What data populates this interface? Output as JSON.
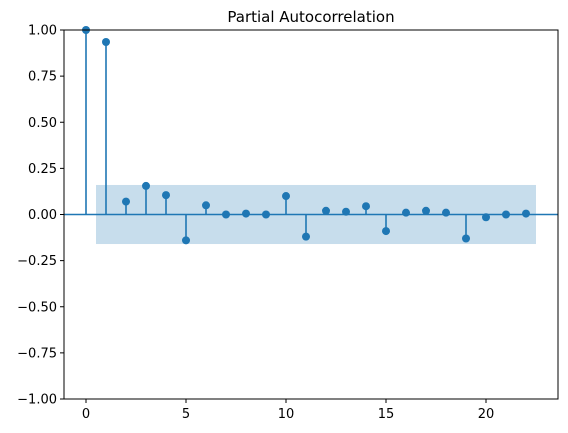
{
  "chart_data": {
    "type": "stem",
    "title": "Partial Autocorrelation",
    "xlabel": "",
    "ylabel": "",
    "xlim": [
      -1.1,
      23.6
    ],
    "ylim": [
      -1.0,
      1.0
    ],
    "xticks": [
      0,
      5,
      10,
      15,
      20
    ],
    "yticks": [
      -1.0,
      -0.75,
      -0.5,
      -0.25,
      0.0,
      0.25,
      0.5,
      0.75,
      1.0
    ],
    "xtick_labels": [
      "0",
      "5",
      "10",
      "15",
      "20"
    ],
    "ytick_labels": [
      "−1.00",
      "−0.75",
      "−0.50",
      "−0.25",
      "0.00",
      "0.25",
      "0.50",
      "0.75",
      "1.00"
    ],
    "lags": [
      0,
      1,
      2,
      3,
      4,
      5,
      6,
      7,
      8,
      9,
      10,
      11,
      12,
      13,
      14,
      15,
      16,
      17,
      18,
      19,
      20,
      21,
      22
    ],
    "values": [
      1.0,
      0.935,
      0.07,
      0.155,
      0.105,
      -0.14,
      0.05,
      0.0,
      0.005,
      0.0,
      0.1,
      -0.12,
      0.02,
      0.015,
      0.045,
      -0.09,
      0.01,
      0.02,
      0.01,
      -0.13,
      -0.015,
      0.0,
      0.005
    ],
    "confidence_band": {
      "x_start": 0.5,
      "x_end": 22.5,
      "lower": -0.16,
      "upper": 0.16
    },
    "grid": false,
    "colors": {
      "stem": "#1f77b4",
      "band": "#1f77b4",
      "band_opacity": 0.25
    }
  }
}
